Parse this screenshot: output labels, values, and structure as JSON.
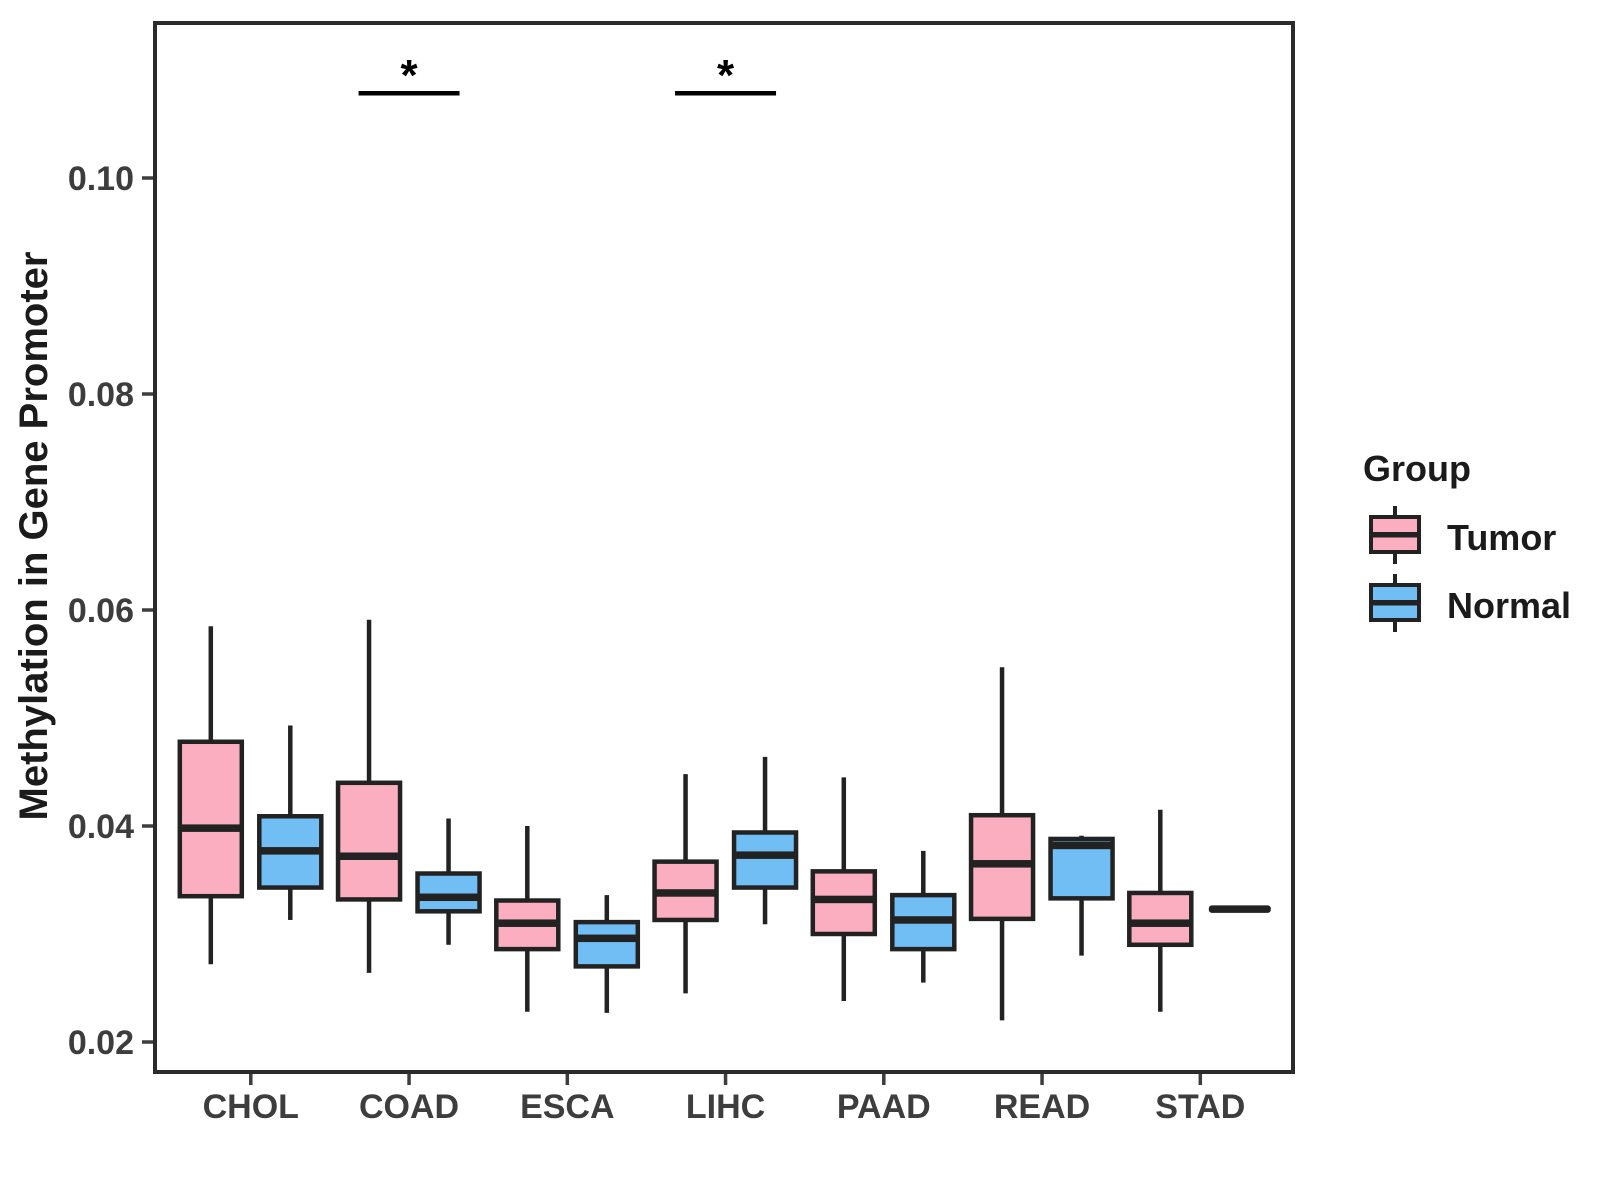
{
  "chart": {
    "ylabel": "Methylation in Gene Promoter",
    "legend_title": "Group"
  },
  "chart_data": {
    "type": "boxplot",
    "title": "",
    "xlabel": "",
    "ylabel": "Methylation in Gene Promoter",
    "categories": [
      "CHOL",
      "COAD",
      "ESCA",
      "LIHC",
      "PAAD",
      "READ",
      "STAD"
    ],
    "groups": [
      "Tumor",
      "Normal"
    ],
    "colors": {
      "Tumor": "#FAAEC0",
      "Normal": "#71BEF5",
      "stroke": "#222222",
      "panel_border": "#2b2b2b",
      "axis_text": "#3d3d3d",
      "annotation": "#000000"
    },
    "ylim": [
      0.0172,
      0.1144
    ],
    "yticks": [
      0.02,
      0.04,
      0.06,
      0.08,
      0.1
    ],
    "ytick_labels": [
      "0.02",
      "0.04",
      "0.06",
      "0.08",
      "0.10"
    ],
    "grid": false,
    "legend_position": "right",
    "legend_title": "Group",
    "series": [
      {
        "name": "Tumor",
        "boxes": [
          {
            "category": "CHOL",
            "whisker_low": 0.0272,
            "q1": 0.0335,
            "median": 0.0398,
            "q3": 0.0478,
            "whisker_high": 0.0585
          },
          {
            "category": "COAD",
            "whisker_low": 0.0264,
            "q1": 0.0332,
            "median": 0.0372,
            "q3": 0.044,
            "whisker_high": 0.0591
          },
          {
            "category": "ESCA",
            "whisker_low": 0.0228,
            "q1": 0.0286,
            "median": 0.031,
            "q3": 0.0331,
            "whisker_high": 0.04
          },
          {
            "category": "LIHC",
            "whisker_low": 0.0245,
            "q1": 0.0313,
            "median": 0.0338,
            "q3": 0.0367,
            "whisker_high": 0.0448
          },
          {
            "category": "PAAD",
            "whisker_low": 0.0238,
            "q1": 0.03,
            "median": 0.0332,
            "q3": 0.0358,
            "whisker_high": 0.0445
          },
          {
            "category": "READ",
            "whisker_low": 0.022,
            "q1": 0.0314,
            "median": 0.0365,
            "q3": 0.041,
            "whisker_high": 0.0547
          },
          {
            "category": "STAD",
            "whisker_low": 0.0228,
            "q1": 0.029,
            "median": 0.031,
            "q3": 0.0338,
            "whisker_high": 0.0415
          }
        ]
      },
      {
        "name": "Normal",
        "boxes": [
          {
            "category": "CHOL",
            "whisker_low": 0.0313,
            "q1": 0.0343,
            "median": 0.0377,
            "q3": 0.0409,
            "whisker_high": 0.0493
          },
          {
            "category": "COAD",
            "whisker_low": 0.029,
            "q1": 0.0321,
            "median": 0.0334,
            "q3": 0.0356,
            "whisker_high": 0.0407
          },
          {
            "category": "ESCA",
            "whisker_low": 0.0227,
            "q1": 0.027,
            "median": 0.0296,
            "q3": 0.0311,
            "whisker_high": 0.0336
          },
          {
            "category": "LIHC",
            "whisker_low": 0.0309,
            "q1": 0.0343,
            "median": 0.0373,
            "q3": 0.0394,
            "whisker_high": 0.0464
          },
          {
            "category": "PAAD",
            "whisker_low": 0.0255,
            "q1": 0.0286,
            "median": 0.0313,
            "q3": 0.0336,
            "whisker_high": 0.0377
          },
          {
            "category": "READ",
            "whisker_low": 0.028,
            "q1": 0.0333,
            "median": 0.0382,
            "q3": 0.0388,
            "whisker_high": 0.0391
          },
          {
            "category": "STAD",
            "whisker_low": null,
            "q1": null,
            "median": 0.0323,
            "q3": null,
            "whisker_high": null
          }
        ]
      }
    ],
    "significance": [
      {
        "category": "COAD",
        "label": "*"
      },
      {
        "category": "LIHC",
        "label": "*"
      }
    ]
  }
}
